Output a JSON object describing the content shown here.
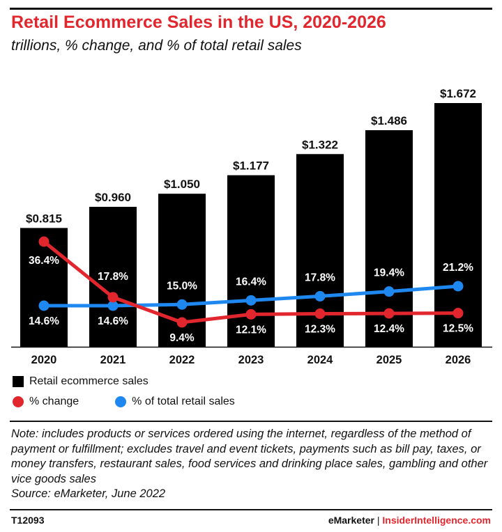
{
  "title": "Retail Ecommerce Sales in the US, 2020-2026",
  "subtitle": "trillions, % change, and % of total retail sales",
  "colors": {
    "bars": "#000000",
    "change": "#e1262d",
    "share": "#1e88f0",
    "title": "#e1262d"
  },
  "chart_data": {
    "type": "bar",
    "categories": [
      "2020",
      "2021",
      "2022",
      "2023",
      "2024",
      "2025",
      "2026"
    ],
    "series": [
      {
        "name": "Retail ecommerce sales",
        "type": "bar",
        "values": [
          0.815,
          0.96,
          1.05,
          1.177,
          1.322,
          1.486,
          1.672
        ],
        "labels": [
          "$0.815",
          "$0.960",
          "$1.050",
          "$1.177",
          "$1.322",
          "$1.486",
          "$1.672"
        ]
      },
      {
        "name": "% change",
        "type": "line",
        "values": [
          36.4,
          17.8,
          9.4,
          12.1,
          12.3,
          12.4,
          12.5
        ],
        "labels": [
          "36.4%",
          "17.8%",
          "9.4%",
          "12.1%",
          "12.3%",
          "12.4%",
          "12.5%"
        ]
      },
      {
        "name": "% of total retail sales",
        "type": "line",
        "values": [
          14.6,
          14.6,
          15.0,
          16.4,
          17.8,
          19.4,
          21.2
        ],
        "labels": [
          "14.6%",
          "14.6%",
          "15.0%",
          "16.4%",
          "17.8%",
          "19.4%",
          "21.2%"
        ]
      }
    ],
    "grid": false,
    "legend_position": "bottom-left"
  },
  "legend": {
    "bars": "Retail ecommerce sales",
    "change": "% change",
    "share": "% of total retail sales"
  },
  "note": "Note: includes products or services ordered using the internet, regardless of the method of payment or fulfillment; excludes travel and event tickets, payments such as bill pay, taxes, or money transfers, restaurant sales, food services and drinking place sales, gambling and other vice goods sales",
  "source": "Source: eMarketer, June 2022",
  "footer": {
    "id": "T12093",
    "brand_left": "eMarketer",
    "brand_sep": "|",
    "brand_right": "InsiderIntelligence.com"
  }
}
